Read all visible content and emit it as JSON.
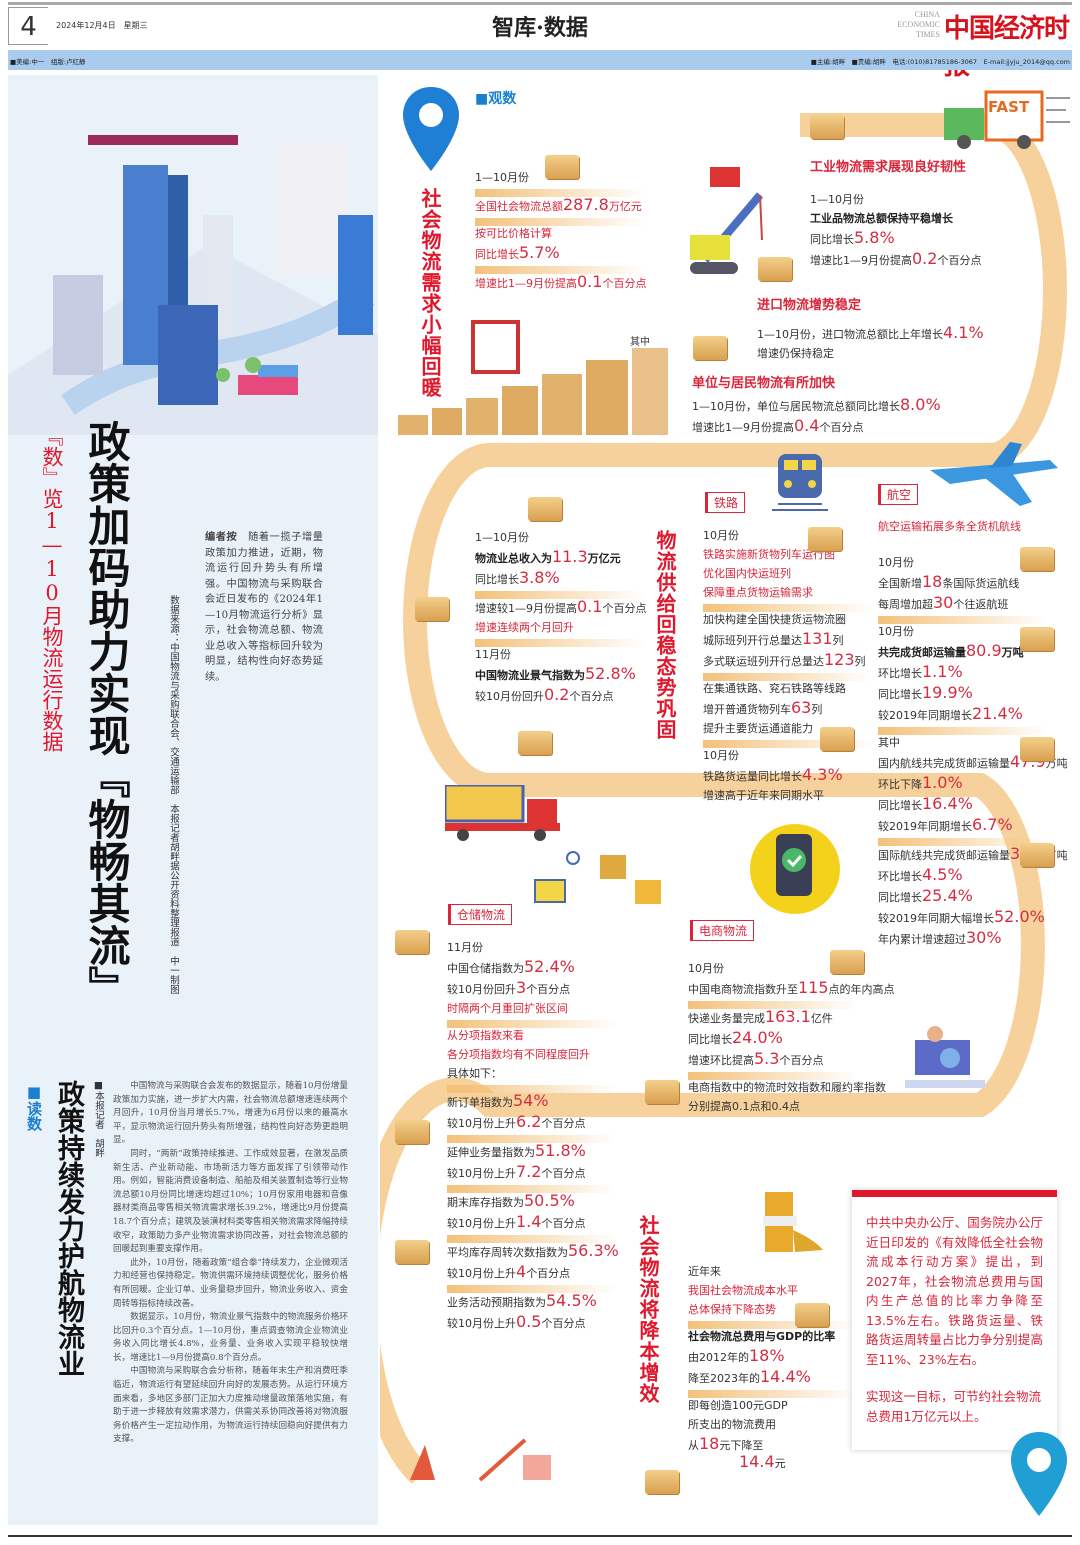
{
  "header": {
    "page_number": "4",
    "date": "2024年12月4日　星期三",
    "section": "智库·数据",
    "logo_en": "CHINA ECONOMIC TIMES",
    "logo_cn": "中国经济时报",
    "credits_left": "■美编:中一　组版:卢红静",
    "credits_right": "■主编:胡畔　■责编:胡畔　电话:(010)81785186-3067　E-mail:jjyju_2014@qq.com"
  },
  "colors": {
    "accent_red": "#d9263b",
    "band_orange": "#f6c98a",
    "header_blue": "#a9ccee",
    "panel_blue": "#e9f1f9",
    "label_blue": "#1a7fd0"
  },
  "feature": {
    "kicker": "『数』览1—10月物流运行数据",
    "headline": "政策加码助力实现『物畅其流』",
    "source": "数据来源：中国物流与采购联合会、交通运输部　本报记者胡畔据公开资料整理报道　中一制图",
    "editor_label": "编者按",
    "editor_note": "随着一揽子增量政策加力推进，近期，物流运行回升势头有所增强。中国物流与采购联合会近日发布的《2024年1—10月物流运行分析》显示，社会物流总额、物流业总收入等指标回升较为明显，结构性向好态势延续。"
  },
  "reading": {
    "label": "■读数",
    "headline": "政策持续发力护航物流业",
    "byline": "■本报记者　胡畔",
    "paragraphs": [
      "中国物流与采购联合会发布的数据显示，随着10月份增量政策加力实施，进一步扩大内需，社会物流总额增速连续两个月回升，10月份当月增长5.7%，增速为6月份以来的最高水平，显示物流运行回升势头有所增强，结构性向好态势更趋明显。",
      "同时，“两新”政策持续推进、工作成效显著，在激发品质新生活、产业新动能、市场新活力等方面发挥了引领带动作用。例如，智能消费设备制造、船舶及相关装置制造等行业物流总额10月份同比增速均超过10%；10月份家用电器和音像器材类商品零售相关物流需求增长39.2%，增速比9月份提高18.7个百分点；建筑及装潢材料类零售相关物流需求降幅持续收窄，政策助力多产业物流需求协同改善，对社会物流总额的回暖起到重要支撑作用。",
      "此外，10月份，随着政策“组合拳”持续发力，企业微观活力和经营也保持稳定。物流供需环境持续调整优化，服务价格有所回暖。企业订单、业务量稳步回升，物流业务收入、资金周转等指标持续改善。",
      "数据显示，10月份，物流业景气指数中的物流服务价格环比回升0.3个百分点。1—10月份，重点调查物流企业物流业务收入同比增长4.8%，业务量、业务收入实现平稳较快增长，增速比1—9月份提高0.8个百分点。",
      "中国物流与采购联合会分析称，随着年末生产和消费旺季临近，物流运行有望延续回升向好的发展态势。从运行环境方面来看，多地区多部门正加大力度推动增量政策落地实施，有助于进一步释放有效需求潜力，供需关系协同改善将对物流服务价格产生一定拉动作用，为物流运行持续回稳向好提供有力支撑。"
    ]
  },
  "observe": {
    "label": "■观数"
  },
  "demand": {
    "title": "社会物流需求小幅回暖",
    "main": [
      [
        {
          "t": "1—10月份"
        }
      ],
      [
        {
          "t": "全国社会物流总额",
          "n": "287.8",
          "u": "万亿元",
          "c": "red"
        }
      ],
      [
        {
          "t": "按可比价格计算",
          "c": "red"
        },
        {
          "t": "同比增长",
          "n": "5.7%",
          "c": "red"
        }
      ],
      [
        {
          "t": "增速比1—9月份提高",
          "n": "0.1",
          "u": "个百分点",
          "c": "red"
        }
      ]
    ],
    "among": "其中",
    "industrial": {
      "title": "工业物流需求展现良好韧性",
      "lines": [
        [
          {
            "t": "1—10月份"
          },
          {
            "t": "工业品物流总额保持平稳增长",
            "c": "bold"
          },
          {
            "t": "同比增长",
            "n": "5.8%"
          },
          {
            "t": "增速比1—9月份提高",
            "n": "0.2",
            "u": "个百分点"
          }
        ]
      ]
    },
    "import": {
      "title": "进口物流增势稳定",
      "lines": [
        [
          {
            "t": "1—10月份，进口物流总额比上年增长",
            "n": "4.1%"
          },
          {
            "t": "增速仍保持稳定"
          }
        ]
      ]
    },
    "household": {
      "title": "单位与居民物流有所加快",
      "lines": [
        [
          {
            "t": "1—10月份，单位与居民物流总额同比增长",
            "n": "8.0%"
          },
          {
            "t": "增速比1—9月份提高",
            "n": "0.4",
            "u": "个百分点"
          }
        ]
      ]
    },
    "truck_label": "FAST"
  },
  "supply": {
    "title": "物流供给回稳态势巩固",
    "left": [
      [
        {
          "t": "1—10月份"
        },
        {
          "t": "物流业总收入为",
          "n": "11.3",
          "u": "万亿元",
          "c": "bold"
        },
        {
          "t": "同比增长",
          "n": "3.8%"
        }
      ],
      [
        {
          "t": "增速较1—9月份提高",
          "n": "0.1",
          "u": "个百分点"
        },
        {
          "t": "增速连续两个月回升",
          "c": "red"
        }
      ],
      [
        {
          "t": "11月份"
        },
        {
          "t": "中国物流业景气指数为",
          "n": "52.8%",
          "c": "bold"
        },
        {
          "t": "较10月份回升",
          "n": "0.2",
          "u": "个百分点"
        }
      ]
    ],
    "rail": {
      "tag": "铁路",
      "groups": [
        [
          {
            "t": "10月份"
          },
          {
            "t": "铁路实施新货物列车运行图",
            "c": "red"
          },
          {
            "t": "优化国内快运班列",
            "c": "red"
          },
          {
            "t": "保障重点货物运输需求",
            "c": "red"
          }
        ],
        [
          {
            "t": "加快构建全国快捷货运物流圈"
          },
          {
            "t": "城际班列开行总量达",
            "n": "131",
            "u": "列"
          },
          {
            "t": "多式联运班列开行总量达",
            "n": "123",
            "u": "列"
          }
        ],
        [
          {
            "t": "在集通铁路、兖石铁路等线路"
          },
          {
            "t": "增开普通货物列车",
            "n": "63",
            "u": "列"
          },
          {
            "t": "提升主要货运通道能力"
          }
        ],
        [
          {
            "t": "10月份"
          },
          {
            "t": "铁路货运量同比增长",
            "n": "4.3%"
          },
          {
            "t": "增速高于近年来同期水平"
          }
        ]
      ]
    },
    "air": {
      "tag": "航空",
      "subtitle": "航空运输拓展多条全货机航线",
      "groups": [
        [
          {
            "t": "10月份"
          },
          {
            "t": "全国新增",
            "n": "18",
            "u": "条国际货运航线"
          },
          {
            "t": "每周增加超",
            "n": "30",
            "u": "个往返航班"
          }
        ],
        [
          {
            "t": "10月份"
          },
          {
            "t": "共完成货邮运输量",
            "n": "80.9",
            "u": "万吨",
            "c": "bold"
          },
          {
            "t": "环比增长",
            "n": "1.1%"
          },
          {
            "t": "同比增长",
            "n": "19.9%"
          },
          {
            "t": "较2019年同期增长",
            "n": "21.4%"
          }
        ],
        [
          {
            "t": "其中"
          },
          {
            "t": "国内航线共完成货邮运输量",
            "n": "47.9",
            "u": "万吨"
          },
          {
            "t": "环比下降",
            "n": "1.0%"
          },
          {
            "t": "同比增长",
            "n": "16.4%"
          },
          {
            "t": "较2019年同期增长",
            "n": "6.7%"
          }
        ],
        [
          {
            "t": "国际航线共完成货邮运输量",
            "n": "33.0",
            "u": "万吨"
          },
          {
            "t": "环比增长",
            "n": "4.5%"
          },
          {
            "t": "同比增长",
            "n": "25.4%"
          },
          {
            "t": "较2019年同期大幅增长",
            "n": "52.0%"
          },
          {
            "t": "年内累计增速超过",
            "n": "30%"
          }
        ]
      ]
    },
    "warehouse": {
      "tag": "仓储物流",
      "groups": [
        [
          {
            "t": "11月份"
          },
          {
            "t": "中国仓储指数为",
            "n": "52.4%"
          },
          {
            "t": "较10月份回升",
            "n": "3",
            "u": "个百分点"
          },
          {
            "t": "时隔两个月重回扩张区间",
            "c": "red"
          }
        ],
        [
          {
            "t": "从分项指数来看",
            "c": "red"
          },
          {
            "t": "各分项指数均有不同程度回升",
            "c": "red"
          },
          {
            "t": "具体如下："
          }
        ],
        [
          {
            "t": "新订单指数为",
            "n": "54%"
          },
          {
            "t": "较10月份上升",
            "n": "6.2",
            "u": "个百分点"
          }
        ],
        [
          {
            "t": "延伸业务量指数为",
            "n": "51.8%"
          },
          {
            "t": "较10月份上升",
            "n": "7.2",
            "u": "个百分点"
          }
        ],
        [
          {
            "t": "期末库存指数为",
            "n": "50.5%"
          },
          {
            "t": "较10月份上升",
            "n": "1.4",
            "u": "个百分点"
          }
        ],
        [
          {
            "t": "平均库存周转次数指数为",
            "n": "56.3%"
          },
          {
            "t": "较10月份上升",
            "n": "4",
            "u": "个百分点"
          }
        ],
        [
          {
            "t": "业务活动预期指数为",
            "n": "54.5%"
          },
          {
            "t": "较10月份上升",
            "n": "0.5",
            "u": "个百分点"
          }
        ]
      ]
    },
    "ecommerce": {
      "tag": "电商物流",
      "groups": [
        [
          {
            "t": "10月份"
          },
          {
            "t": "中国电商物流指数升至",
            "n": "115",
            "u": "点的年内高点"
          }
        ],
        [
          {
            "t": "快递业务量完成",
            "n": "163.1",
            "u": "亿件"
          },
          {
            "t": "同比增长",
            "n": "24.0%"
          },
          {
            "t": "增速环比提高",
            "n": "5.3",
            "u": "个百分点"
          }
        ],
        [
          {
            "t": "电商指数中的物流时效指数和履约率指数"
          },
          {
            "t": "分别提高0.1点和0.4点"
          }
        ]
      ]
    }
  },
  "cost": {
    "title": "社会物流将降本增效",
    "groups": [
      [
        {
          "t": "近年来"
        },
        {
          "t": "我国社会物流成本水平",
          "c": "red"
        },
        {
          "t": "总体保持下降态势",
          "c": "red"
        }
      ],
      [
        {
          "t": "社会物流总费用与GDP的比率",
          "c": "bold"
        },
        {
          "t": "由2012年的",
          "n": "18%"
        },
        {
          "t": "降至2023年的",
          "n": "14.4%"
        }
      ],
      [
        {
          "t": "即每创造100元GDP"
        },
        {
          "t": "所支出的物流费用"
        },
        {
          "t": "从",
          "n": "18",
          "u": "元下降至"
        }
      ]
    ],
    "last_value": "14.4",
    "last_unit": "元",
    "policy": [
      "中共中央办公厅、国务院办公厅近日印发的《有效降低全社会物流成本行动方案》提出，到2027年，社会物流总费用与国内生产总值的比率力争降至13.5%左右。铁路货运量、铁路货运周转量占比力争分别提高至11%、23%左右。",
      "实现这一目标，可节约社会物流总费用1万亿元以上。"
    ]
  }
}
